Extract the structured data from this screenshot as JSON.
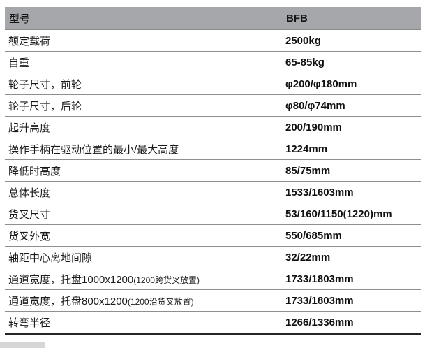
{
  "table": {
    "header": {
      "label": "型号",
      "value": "BFB"
    },
    "rows": [
      {
        "label": "额定载荷",
        "value": "2500kg"
      },
      {
        "label": "自重",
        "value": "65-85kg"
      },
      {
        "label": "轮子尺寸，前轮",
        "value": "φ200/φ180mm"
      },
      {
        "label": "轮子尺寸，后轮",
        "value": "φ80/φ74mm"
      },
      {
        "label": "起升高度",
        "value": "200/190mm"
      },
      {
        "label": "操作手柄在驱动位置的最小/最大高度",
        "value": "1224mm"
      },
      {
        "label": "降低时高度",
        "value": "85/75mm"
      },
      {
        "label": "总体长度",
        "value": "1533/1603mm"
      },
      {
        "label": "货叉尺寸",
        "value": "53/160/1150(1220)mm"
      },
      {
        "label": "货叉外宽",
        "value": "550/685mm"
      },
      {
        "label": "轴距中心离地间隙",
        "value": "32/22mm"
      },
      {
        "label": "通道宽度，托盘1000x1200",
        "label_small": "(1200跨货叉放置)",
        "value": "1733/1803mm"
      },
      {
        "label": "通道宽度，托盘800x1200",
        "label_small": "(1200沿货叉放置)",
        "value": "1733/1803mm"
      },
      {
        "label": "转弯半径",
        "value": "1266/1336mm"
      }
    ],
    "colors": {
      "header_bg": "#a5a7aa",
      "separator": "#8f8f8f",
      "bottom_border": "#262626",
      "text": "#1b1b1b"
    }
  }
}
